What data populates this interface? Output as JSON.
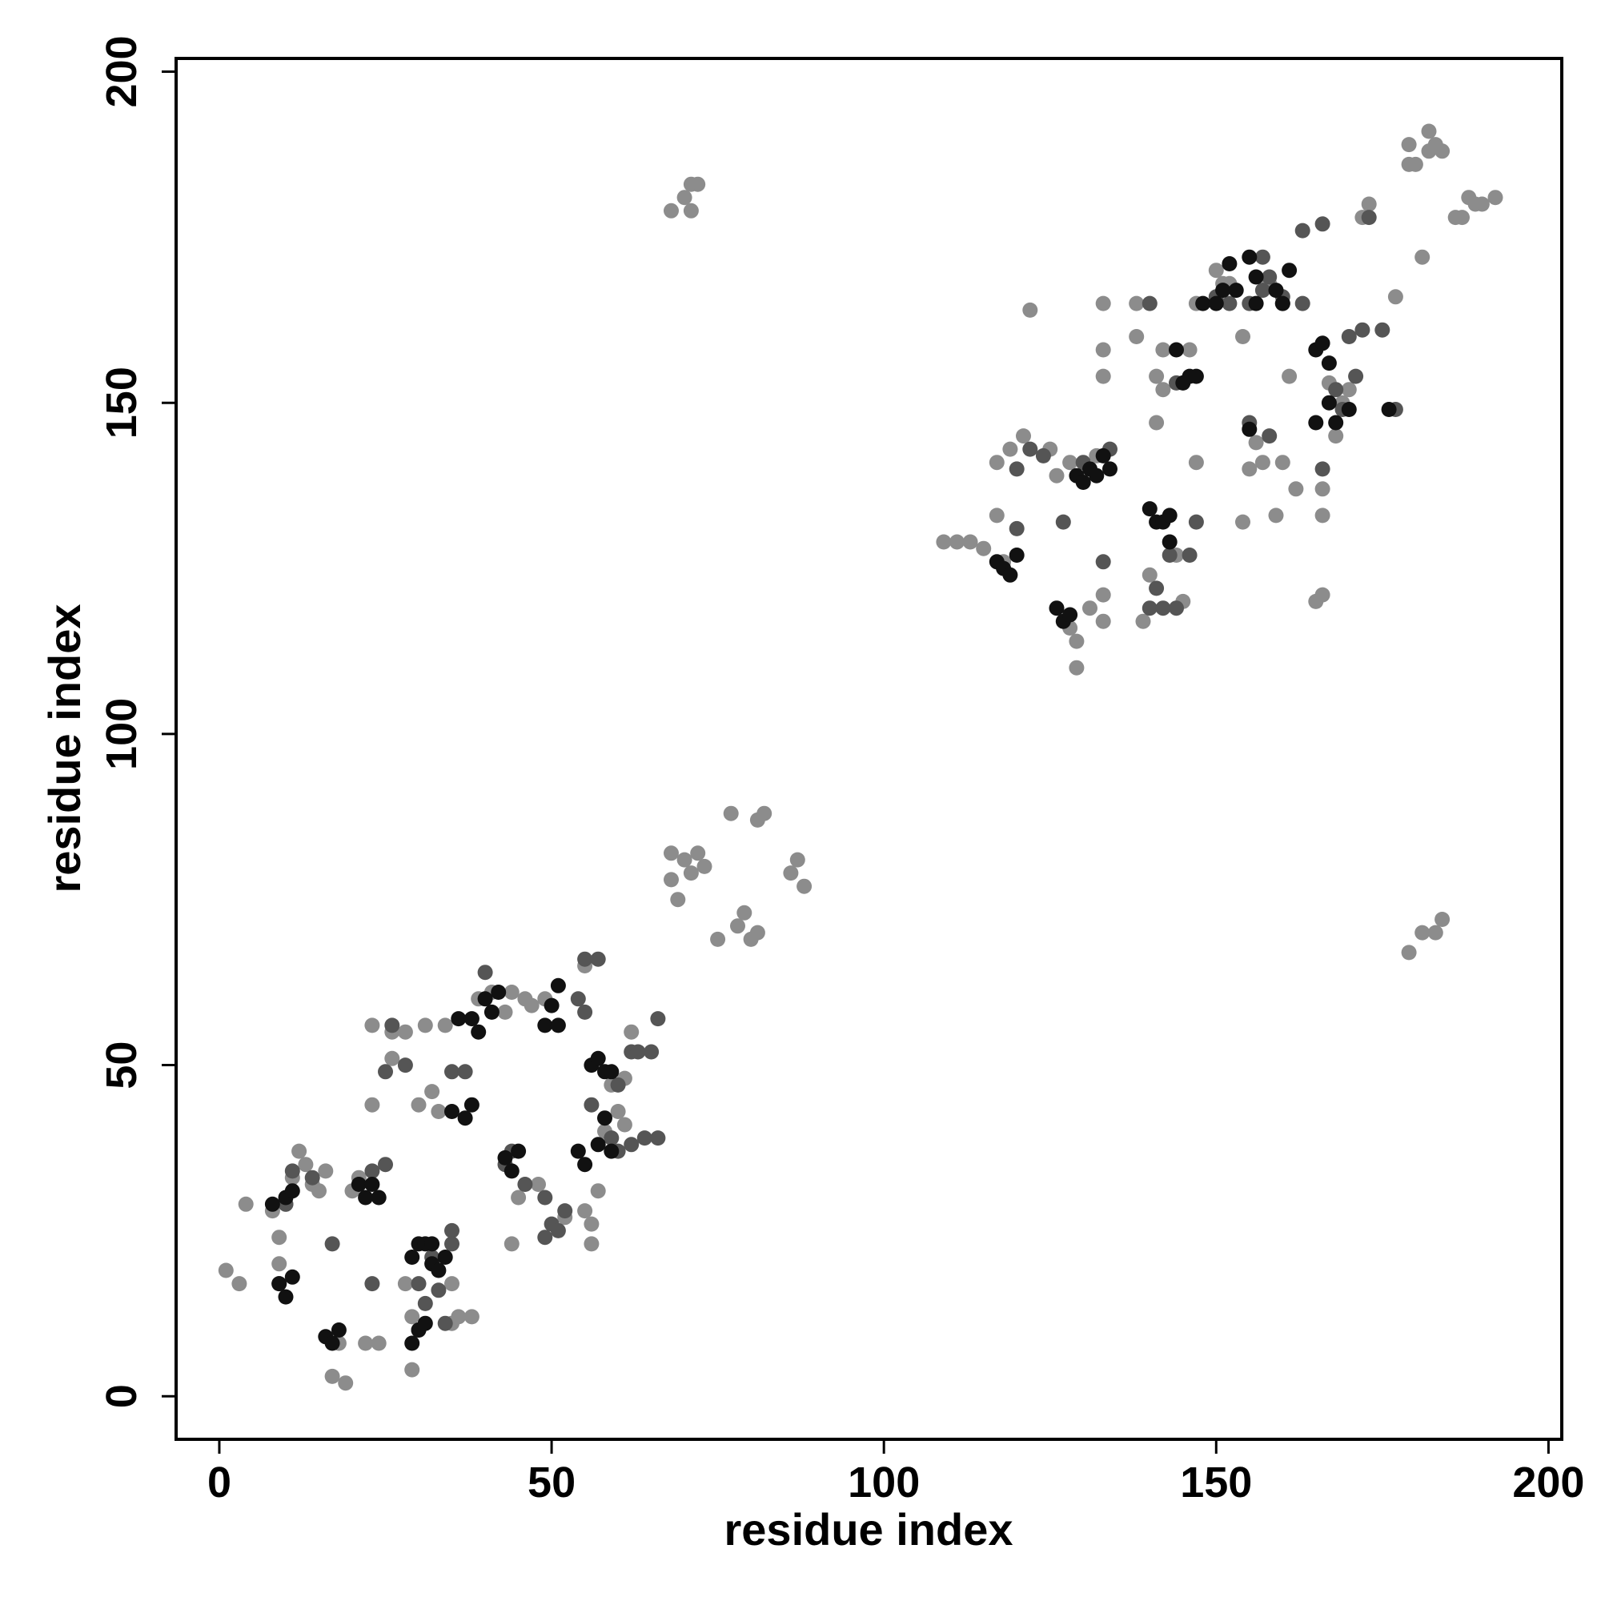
{
  "chart_data": {
    "type": "scatter",
    "title": "",
    "xlabel": "residue index",
    "ylabel": "residue index",
    "xlim": [
      -6.5,
      202
    ],
    "ylim": [
      -6.5,
      202
    ],
    "xticks": [
      0,
      50,
      100,
      150,
      200
    ],
    "yticks": [
      0,
      50,
      100,
      150,
      200
    ],
    "grid": false,
    "legend": "none",
    "colors": {
      "light": "#8c8c8c",
      "medium": "#555555",
      "dark": "#111111"
    },
    "series": [
      {
        "shade": "light",
        "points": [
          [
            1,
            19
          ],
          [
            3,
            17
          ],
          [
            4,
            29
          ],
          [
            8,
            28
          ],
          [
            9,
            24
          ],
          [
            9,
            20
          ],
          [
            10,
            29
          ],
          [
            11,
            33
          ],
          [
            12,
            37
          ],
          [
            13,
            35
          ],
          [
            14,
            32
          ],
          [
            15,
            31
          ],
          [
            16,
            34
          ],
          [
            18,
            8
          ],
          [
            17,
            3
          ],
          [
            19,
            2
          ],
          [
            20,
            31
          ],
          [
            21,
            33
          ],
          [
            22,
            8
          ],
          [
            24,
            8
          ],
          [
            23,
            44
          ],
          [
            23,
            56
          ],
          [
            26,
            55
          ],
          [
            26,
            51
          ],
          [
            28,
            55
          ],
          [
            29,
            4
          ],
          [
            28,
            17
          ],
          [
            29,
            12
          ],
          [
            30,
            44
          ],
          [
            31,
            56
          ],
          [
            32,
            46
          ],
          [
            33,
            43
          ],
          [
            34,
            56
          ],
          [
            35,
            17
          ],
          [
            35,
            11
          ],
          [
            36,
            12
          ],
          [
            38,
            12
          ],
          [
            39,
            60
          ],
          [
            41,
            61
          ],
          [
            43,
            58
          ],
          [
            44,
            61
          ],
          [
            44,
            23
          ],
          [
            45,
            30
          ],
          [
            46,
            60
          ],
          [
            47,
            59
          ],
          [
            48,
            32
          ],
          [
            49,
            60
          ],
          [
            52,
            27
          ],
          [
            55,
            65
          ],
          [
            55,
            28
          ],
          [
            56,
            26
          ],
          [
            56,
            23
          ],
          [
            57,
            31
          ],
          [
            58,
            40
          ],
          [
            59,
            47
          ],
          [
            60,
            43
          ],
          [
            61,
            41
          ],
          [
            61,
            48
          ],
          [
            62,
            55
          ],
          [
            68,
            82
          ],
          [
            68,
            78
          ],
          [
            69,
            75
          ],
          [
            70,
            81
          ],
          [
            71,
            79
          ],
          [
            72,
            82
          ],
          [
            73,
            80
          ],
          [
            75,
            69
          ],
          [
            77,
            88
          ],
          [
            78,
            71
          ],
          [
            79,
            73
          ],
          [
            80,
            69
          ],
          [
            81,
            87
          ],
          [
            81,
            70
          ],
          [
            82,
            88
          ],
          [
            86,
            79
          ],
          [
            87,
            81
          ],
          [
            88,
            77
          ],
          [
            68,
            179
          ],
          [
            70,
            181
          ],
          [
            71,
            183
          ],
          [
            72,
            183
          ],
          [
            71,
            179
          ],
          [
            109,
            129
          ],
          [
            111,
            129
          ],
          [
            113,
            129
          ],
          [
            115,
            128
          ],
          [
            118,
            126
          ],
          [
            117,
            133
          ],
          [
            117,
            141
          ],
          [
            119,
            143
          ],
          [
            121,
            145
          ],
          [
            122,
            164
          ],
          [
            125,
            143
          ],
          [
            126,
            139
          ],
          [
            128,
            141
          ],
          [
            128,
            116
          ],
          [
            129,
            110
          ],
          [
            129,
            114
          ],
          [
            131,
            119
          ],
          [
            132,
            142
          ],
          [
            133,
            117
          ],
          [
            133,
            121
          ],
          [
            133,
            154
          ],
          [
            133,
            158
          ],
          [
            133,
            165
          ],
          [
            138,
            160
          ],
          [
            138,
            165
          ],
          [
            139,
            117
          ],
          [
            140,
            124
          ],
          [
            141,
            154
          ],
          [
            141,
            147
          ],
          [
            142,
            152
          ],
          [
            142,
            158
          ],
          [
            144,
            127
          ],
          [
            145,
            120
          ],
          [
            146,
            158
          ],
          [
            147,
            141
          ],
          [
            147,
            165
          ],
          [
            150,
            170
          ],
          [
            151,
            168
          ],
          [
            152,
            168
          ],
          [
            154,
            160
          ],
          [
            154,
            132
          ],
          [
            155,
            140
          ],
          [
            156,
            144
          ],
          [
            157,
            141
          ],
          [
            158,
            168
          ],
          [
            159,
            133
          ],
          [
            160,
            141
          ],
          [
            161,
            154
          ],
          [
            162,
            137
          ],
          [
            165,
            120
          ],
          [
            166,
            121
          ],
          [
            166,
            137
          ],
          [
            166,
            133
          ],
          [
            167,
            153
          ],
          [
            168,
            145
          ],
          [
            169,
            150
          ],
          [
            170,
            152
          ],
          [
            172,
            178
          ],
          [
            173,
            180
          ],
          [
            177,
            166
          ],
          [
            179,
            186
          ],
          [
            179,
            189
          ],
          [
            180,
            186
          ],
          [
            181,
            172
          ],
          [
            182,
            188
          ],
          [
            182,
            191
          ],
          [
            183,
            189
          ],
          [
            184,
            188
          ],
          [
            186,
            178
          ],
          [
            187,
            178
          ],
          [
            188,
            181
          ],
          [
            189,
            180
          ],
          [
            190,
            180
          ],
          [
            192,
            181
          ],
          [
            179,
            67
          ],
          [
            181,
            70
          ],
          [
            183,
            70
          ],
          [
            184,
            72
          ]
        ]
      },
      {
        "shade": "medium",
        "points": [
          [
            9,
            17
          ],
          [
            10,
            29
          ],
          [
            11,
            34
          ],
          [
            14,
            33
          ],
          [
            17,
            23
          ],
          [
            23,
            34
          ],
          [
            23,
            17
          ],
          [
            25,
            35
          ],
          [
            25,
            49
          ],
          [
            26,
            56
          ],
          [
            28,
            50
          ],
          [
            30,
            10
          ],
          [
            30,
            17
          ],
          [
            31,
            14
          ],
          [
            32,
            21
          ],
          [
            33,
            16
          ],
          [
            34,
            11
          ],
          [
            35,
            25
          ],
          [
            35,
            23
          ],
          [
            35,
            49
          ],
          [
            37,
            49
          ],
          [
            40,
            64
          ],
          [
            43,
            35
          ],
          [
            44,
            37
          ],
          [
            46,
            32
          ],
          [
            49,
            30
          ],
          [
            49,
            24
          ],
          [
            50,
            26
          ],
          [
            51,
            25
          ],
          [
            52,
            28
          ],
          [
            54,
            60
          ],
          [
            55,
            58
          ],
          [
            55,
            66
          ],
          [
            57,
            66
          ],
          [
            56,
            44
          ],
          [
            59,
            39
          ],
          [
            60,
            47
          ],
          [
            60,
            37
          ],
          [
            62,
            38
          ],
          [
            62,
            52
          ],
          [
            63,
            52
          ],
          [
            64,
            39
          ],
          [
            65,
            52
          ],
          [
            66,
            57
          ],
          [
            66,
            39
          ],
          [
            120,
            131
          ],
          [
            120,
            140
          ],
          [
            122,
            143
          ],
          [
            124,
            142
          ],
          [
            127,
            132
          ],
          [
            130,
            141
          ],
          [
            133,
            126
          ],
          [
            134,
            143
          ],
          [
            140,
            165
          ],
          [
            140,
            119
          ],
          [
            141,
            122
          ],
          [
            142,
            119
          ],
          [
            143,
            127
          ],
          [
            144,
            119
          ],
          [
            144,
            153
          ],
          [
            146,
            127
          ],
          [
            147,
            132
          ],
          [
            150,
            166
          ],
          [
            152,
            165
          ],
          [
            155,
            147
          ],
          [
            155,
            165
          ],
          [
            157,
            167
          ],
          [
            157,
            172
          ],
          [
            158,
            169
          ],
          [
            158,
            145
          ],
          [
            160,
            166
          ],
          [
            160,
            165
          ],
          [
            163,
            165
          ],
          [
            163,
            176
          ],
          [
            166,
            140
          ],
          [
            166,
            177
          ],
          [
            168,
            152
          ],
          [
            169,
            149
          ],
          [
            170,
            160
          ],
          [
            171,
            154
          ],
          [
            172,
            161
          ],
          [
            173,
            178
          ],
          [
            175,
            161
          ],
          [
            177,
            149
          ]
        ]
      },
      {
        "shade": "dark",
        "points": [
          [
            8,
            29
          ],
          [
            9,
            17
          ],
          [
            10,
            30
          ],
          [
            10,
            15
          ],
          [
            11,
            31
          ],
          [
            11,
            18
          ],
          [
            16,
            9
          ],
          [
            17,
            8
          ],
          [
            18,
            10
          ],
          [
            21,
            32
          ],
          [
            22,
            30
          ],
          [
            23,
            32
          ],
          [
            24,
            30
          ],
          [
            29,
            21
          ],
          [
            29,
            8
          ],
          [
            30,
            10
          ],
          [
            30,
            23
          ],
          [
            31,
            23
          ],
          [
            31,
            11
          ],
          [
            32,
            23
          ],
          [
            32,
            20
          ],
          [
            33,
            19
          ],
          [
            34,
            21
          ],
          [
            35,
            43
          ],
          [
            36,
            57
          ],
          [
            37,
            42
          ],
          [
            38,
            44
          ],
          [
            38,
            57
          ],
          [
            39,
            55
          ],
          [
            40,
            60
          ],
          [
            41,
            58
          ],
          [
            42,
            61
          ],
          [
            43,
            36
          ],
          [
            44,
            34
          ],
          [
            45,
            37
          ],
          [
            49,
            56
          ],
          [
            50,
            59
          ],
          [
            51,
            56
          ],
          [
            51,
            62
          ],
          [
            54,
            37
          ],
          [
            55,
            35
          ],
          [
            56,
            50
          ],
          [
            57,
            51
          ],
          [
            57,
            38
          ],
          [
            58,
            42
          ],
          [
            58,
            49
          ],
          [
            59,
            49
          ],
          [
            59,
            37
          ],
          [
            117,
            126
          ],
          [
            118,
            125
          ],
          [
            119,
            124
          ],
          [
            120,
            127
          ],
          [
            126,
            119
          ],
          [
            127,
            117
          ],
          [
            128,
            118
          ],
          [
            129,
            139
          ],
          [
            130,
            138
          ],
          [
            131,
            140
          ],
          [
            132,
            139
          ],
          [
            133,
            142
          ],
          [
            134,
            140
          ],
          [
            140,
            134
          ],
          [
            141,
            132
          ],
          [
            142,
            132
          ],
          [
            143,
            133
          ],
          [
            143,
            129
          ],
          [
            144,
            158
          ],
          [
            145,
            153
          ],
          [
            146,
            154
          ],
          [
            147,
            154
          ],
          [
            148,
            165
          ],
          [
            150,
            165
          ],
          [
            151,
            167
          ],
          [
            152,
            171
          ],
          [
            153,
            167
          ],
          [
            155,
            146
          ],
          [
            155,
            172
          ],
          [
            156,
            165
          ],
          [
            156,
            169
          ],
          [
            159,
            167
          ],
          [
            160,
            165
          ],
          [
            161,
            170
          ],
          [
            165,
            158
          ],
          [
            165,
            147
          ],
          [
            166,
            159
          ],
          [
            167,
            156
          ],
          [
            167,
            150
          ],
          [
            168,
            147
          ],
          [
            170,
            149
          ],
          [
            176,
            149
          ]
        ]
      }
    ]
  }
}
